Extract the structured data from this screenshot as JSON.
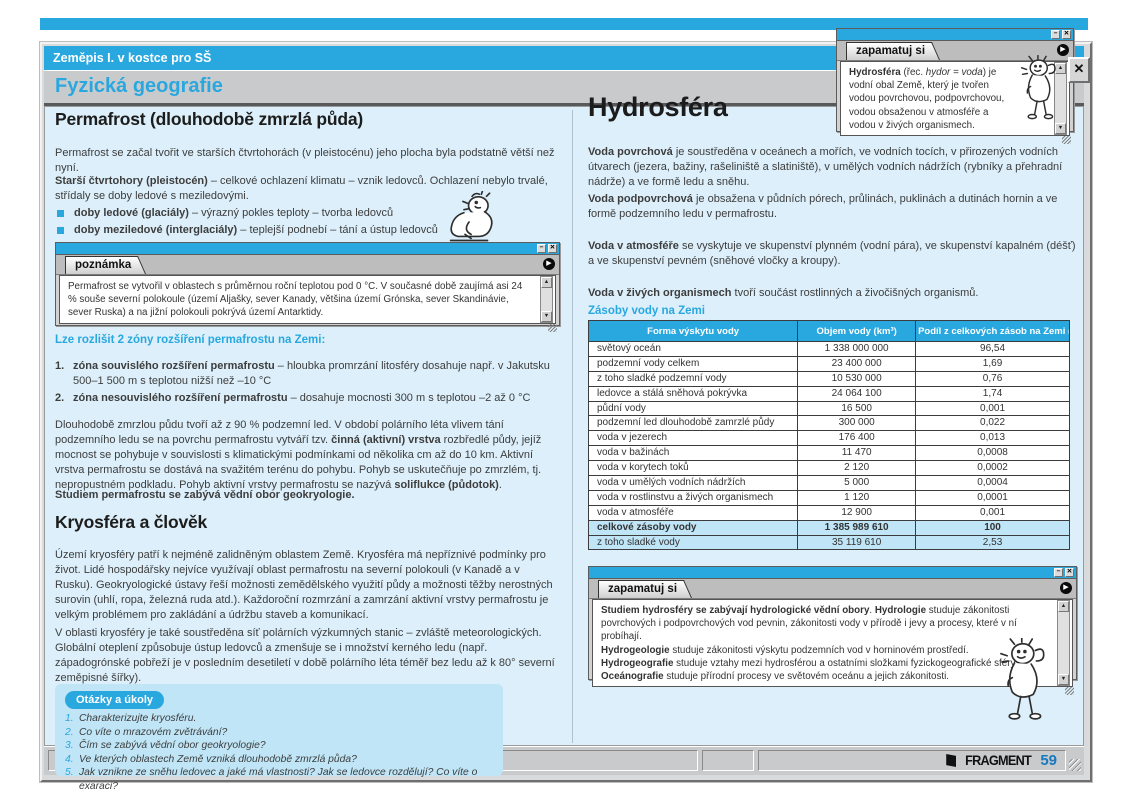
{
  "frame": {
    "book_title": "Zeměpis I. v kostce pro SŠ",
    "chapter_title": "Fyzická geografie",
    "page_number": "59",
    "logo_text": "FRAGMENT",
    "glyphs": {
      "minimize": "−",
      "close": "✕",
      "play": "▶",
      "up": "▲",
      "down": "▼"
    },
    "colors": {
      "accent": "#29a8e0",
      "content_bg": "#dceffa",
      "box_blue": "#bfe5f6",
      "bar_gray": "#c9cacc"
    }
  },
  "left_column": {
    "heading1": "Permafrost (dlouhodobě zmrzlá půda)",
    "p1": "Permafrost se začal tvořit ve starších čtvrtohorách (v pleistocénu) jeho plocha byla podstatně větší než nyní.",
    "p2": [
      {
        "t": "Starší čtvrtohory (pleistocén)",
        "b": true
      },
      {
        "t": " – celkové ochlazení klimatu – vznik ledovců. Ochlazení nebylo trvalé, střídaly se doby ledové s meziledovými.",
        "b": false
      }
    ],
    "bullets": [
      [
        {
          "t": "doby ledové (glaciály)",
          "b": true
        },
        {
          "t": " – výrazný pokles teploty – tvorba ledovců",
          "b": false
        }
      ],
      [
        {
          "t": "doby meziledové (interglaciály)",
          "b": true
        },
        {
          "t": " – teplejší podnebí – tání a ústup ledovců",
          "b": false
        }
      ]
    ],
    "note_box": {
      "title": "poznámka",
      "text": "Permafrost se vytvořil v oblastech s průměrnou roční teplotou pod 0 °C. V současné době zaujímá asi 24 % souše severní polokoule (území Aljašky, sever Kanady, většina území Grónska, sever Skandinávie, sever Ruska) a na jižní polokouli pokrývá území Antarktidy."
    },
    "zones_intro": "Lze rozlišit 2 zóny rozšíření permafrostu na Zemi:",
    "zones": [
      {
        "num": "1.",
        "segments": [
          {
            "t": "zóna souvislého rozšíření permafrostu",
            "b": true
          },
          {
            "t": " – hloubka promrzání litosféry dosahuje např. v Jakutsku 500–1 500 m s teplotou nižší než –10 °C",
            "b": false
          }
        ]
      },
      {
        "num": "2.",
        "segments": [
          {
            "t": "zóna nesouvislého rozšíření permafrostu",
            "b": true
          },
          {
            "t": " – dosahuje mocnosti 300 m s teplotou –2 až 0 °C",
            "b": false
          }
        ]
      }
    ],
    "p3": [
      {
        "t": "Dlouhodobě zmrzlou půdu tvoří až z 90 % podzemní led. V období polárního léta vlivem tání podzemního ledu se na povrchu permafrostu vytváří tzv. ",
        "b": false
      },
      {
        "t": "činná (aktivní) vrstva",
        "b": true
      },
      {
        "t": " rozbředlé půdy, jejíž mocnost se pohybuje v souvislosti s klimatickými podmínkami od několika cm až do 10 km. Aktivní vrstva permafrostu se dostává na svažitém terénu do pohybu. Pohyb se uskutečňuje po zmrzlém, tj. nepropustném podkladu. Pohyb aktivní vrstvy permafrostu se nazývá ",
        "b": false
      },
      {
        "t": "soliflukce (půdotok)",
        "b": true
      },
      {
        "t": ".",
        "b": false
      }
    ],
    "p_bold": "Studiem permafrostu se zabývá vědní obor geokryologie.",
    "heading2": "Kryosféra a člověk",
    "p4": "Území kryosféry patří k nejméně zalidněným oblastem Země. Kryosféra má nepříznivé podmínky pro život. Lidé hospodářsky nejvíce využívají oblast permafrostu na severní polokouli (v Kanadě a v Rusku). Geokryologické ústavy řeší možnosti zemědělského využití půdy a možnosti těžby nerostných surovin (uhlí, ropa, železná ruda atd.). Každoroční rozmrzání a zamrzání aktivní vrstvy permafrostu je velkým problémem pro zakládání a údržbu staveb a komunikací.",
    "p5": "V oblasti kryosféry je také soustředěna síť polárních výzkumných stanic – zvláště meteorologických. Globální oteplení způsobuje ústup ledovců a zmenšuje se i množství kerného ledu (např. západogrónské pobřeží je v posledním desetiletí v době polárního léta téměř bez ledu až k 80° severní zeměpisné šířky).",
    "questions_box": {
      "label": "Otázky a úkoly",
      "items": [
        "Charakterizujte kryosféru.",
        "Co víte o mrazovém zvětrávání?",
        "Čím se zabývá vědní obor geokryologie?",
        "Ve kterých oblastech Země vzniká dlouhodobě zmrzlá půda?",
        "Jak vznikne ze sněhu ledovec a jaké má vlastnosti? Jak se ledovce rozdělují? Co víte o exaraci?"
      ]
    }
  },
  "right_column": {
    "heading1": "Hydrosféra",
    "paragraphs": [
      [
        {
          "t": "Voda povrchová",
          "b": true
        },
        {
          "t": " je soustředěna v oceánech a mořích, ve vodních tocích, v přirozených vodních útvarech (jezera, bažiny, rašeliniště a slatiniště), v umělých vodních nádržích (rybníky a přehradní nádrže) a ve formě ledu a sněhu.",
          "b": false
        }
      ],
      [
        {
          "t": "Voda podpovrchová",
          "b": true
        },
        {
          "t": " je obsažena v půdních pórech, průlinách, puklinách a dutinách hornin a ve formě podzemního ledu v permafrostu.",
          "b": false
        }
      ],
      [
        {
          "t": "Voda v atmosféře",
          "b": true
        },
        {
          "t": " se vyskytuje ve skupenství plynném (vodní pára), ve skupenství kapalném (déšť) a ve skupenství pevném (sněhové vločky a kroupy).",
          "b": false
        }
      ],
      [
        {
          "t": "Voda v živých organismech",
          "b": true
        },
        {
          "t": " tvoří součást rostlinných a živočišných organismů.",
          "b": false
        }
      ]
    ],
    "table": {
      "title": "Zásoby vody na Zemi",
      "headers": [
        "Forma výskytu vody",
        "Objem vody (km³)",
        "Podíl z celkových zásob na Zemi (%)"
      ],
      "rows": [
        {
          "cells": [
            "světový oceán",
            "1 338 000 000",
            "96,54"
          ],
          "hl": false,
          "bold": false
        },
        {
          "cells": [
            "podzemní vody celkem",
            "23 400 000",
            "1,69"
          ],
          "hl": false,
          "bold": false
        },
        {
          "cells": [
            "z toho sladké podzemní vody",
            "10 530 000",
            "0,76"
          ],
          "hl": false,
          "bold": false
        },
        {
          "cells": [
            "ledovce a stálá sněhová pokrývka",
            "24 064 100",
            "1,74"
          ],
          "hl": false,
          "bold": false
        },
        {
          "cells": [
            "půdní vody",
            "16 500",
            "0,001"
          ],
          "hl": false,
          "bold": false
        },
        {
          "cells": [
            "podzemní led dlouhodobě zamrzlé půdy",
            "300 000",
            "0,022"
          ],
          "hl": false,
          "bold": false
        },
        {
          "cells": [
            "voda v jezerech",
            "176 400",
            "0,013"
          ],
          "hl": false,
          "bold": false
        },
        {
          "cells": [
            "voda v bažinách",
            "11 470",
            "0,0008"
          ],
          "hl": false,
          "bold": false
        },
        {
          "cells": [
            "voda v korytech toků",
            "2 120",
            "0,0002"
          ],
          "hl": false,
          "bold": false
        },
        {
          "cells": [
            "voda v umělých vodních nádržích",
            "5 000",
            "0,0004"
          ],
          "hl": false,
          "bold": false
        },
        {
          "cells": [
            "voda v rostlinstvu a živých organismech",
            "1 120",
            "0,0001"
          ],
          "hl": false,
          "bold": false
        },
        {
          "cells": [
            "voda v atmosféře",
            "12 900",
            "0,001"
          ],
          "hl": false,
          "bold": false
        },
        {
          "cells": [
            "celkové zásoby vody",
            "1 385 989 610",
            "100"
          ],
          "hl": true,
          "bold": true
        },
        {
          "cells": [
            "z toho sladké vody",
            "35 119 610",
            "2,53"
          ],
          "hl": true,
          "bold": false
        }
      ]
    },
    "remember_box": {
      "title": "zapamatuj si",
      "lines": [
        [
          {
            "t": "Studiem hydrosféry se zabývají hydrologické vědní obory",
            "b": true
          },
          {
            "t": ". ",
            "b": false
          },
          {
            "t": "Hydrologie",
            "b": true
          },
          {
            "t": " studuje zákonitosti povrchových i podpovrchových vod pevnin, zákonitosti vody v přírodě i jevy a procesy, které v ní probíhají.",
            "b": false
          }
        ],
        [
          {
            "t": "Hydrogeologie",
            "b": true
          },
          {
            "t": " studuje zákonitosti výskytu podzemních vod v horninovém prostředí.",
            "b": false
          }
        ],
        [
          {
            "t": "Hydrogeografie",
            "b": true
          },
          {
            "t": " studuje vztahy mezi hydrosférou a ostatními složkami fyzickogeografické sféry.",
            "b": false
          }
        ],
        [
          {
            "t": "Oceánografie",
            "b": true
          },
          {
            "t": " studuje přírodní procesy ve světovém oceánu a jejich zákonitosti.",
            "b": false
          }
        ]
      ]
    }
  },
  "popup": {
    "title": "zapamatuj si",
    "text": [
      {
        "t": "Hydrosféra",
        "b": true
      },
      {
        "t": " (řec. ",
        "b": false
      },
      {
        "t": "hydor = voda",
        "b": false,
        "i": true
      },
      {
        "t": ") je vodní obal Země, který je tvořen vodou povrchovou, podpovrchovou, vodou obsaženou v atmosféře a vodou v živých organismech.",
        "b": false
      }
    ]
  }
}
